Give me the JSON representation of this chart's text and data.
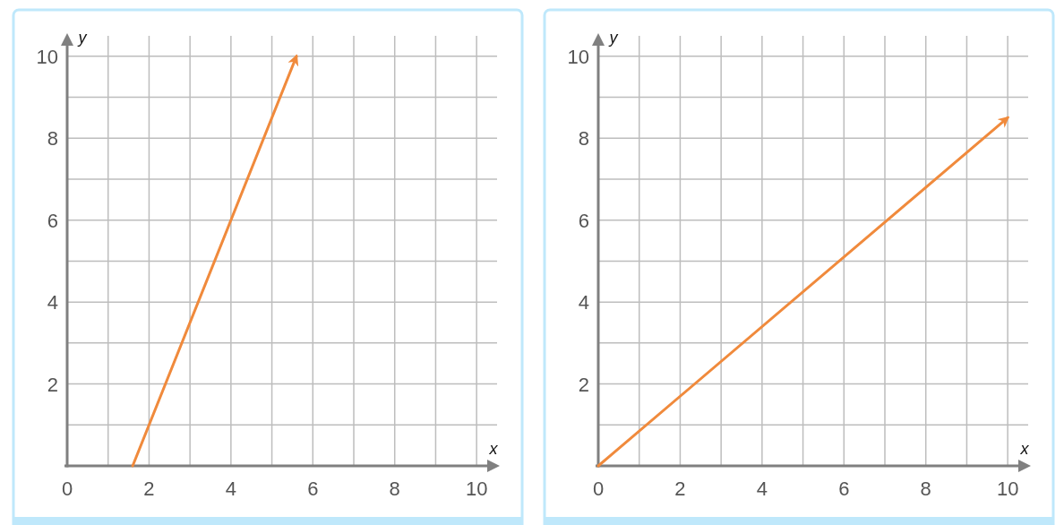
{
  "chart_data": [
    {
      "type": "line",
      "xlabel": "x",
      "ylabel": "y",
      "xlim": [
        0,
        10.5
      ],
      "ylim": [
        0,
        10.5
      ],
      "xticks": [
        {
          "value": 0,
          "label": "0"
        },
        {
          "value": 1,
          "label": null
        },
        2,
        {
          "value": 3,
          "label": null
        },
        4,
        {
          "value": 5,
          "label": null
        },
        6,
        {
          "value": 7,
          "label": null
        },
        8,
        {
          "value": 9,
          "label": null
        },
        10
      ],
      "yticks": [
        {
          "value": 0,
          "label": null
        },
        {
          "value": 1,
          "label": null
        },
        2,
        {
          "value": 3,
          "label": null
        },
        4,
        {
          "value": 5,
          "label": null
        },
        6,
        {
          "value": 7,
          "label": null
        },
        8,
        {
          "value": 9,
          "label": null
        },
        10
      ],
      "grid": true,
      "series": [
        {
          "color": "#f08a3c",
          "x": [
            1.6,
            5.6
          ],
          "values": [
            0,
            10
          ]
        }
      ]
    },
    {
      "type": "line",
      "xlabel": "x",
      "ylabel": "y",
      "xlim": [
        0,
        10.5
      ],
      "ylim": [
        0,
        10.5
      ],
      "xticks": [
        {
          "value": 0,
          "label": "0"
        },
        {
          "value": 1,
          "label": null
        },
        2,
        {
          "value": 3,
          "label": null
        },
        4,
        {
          "value": 5,
          "label": null
        },
        6,
        {
          "value": 7,
          "label": null
        },
        8,
        {
          "value": 9,
          "label": null
        },
        10
      ],
      "yticks": [
        {
          "value": 0,
          "label": null
        },
        {
          "value": 1,
          "label": null
        },
        2,
        {
          "value": 3,
          "label": null
        },
        4,
        {
          "value": 5,
          "label": null
        },
        6,
        {
          "value": 7,
          "label": null
        },
        8,
        {
          "value": 9,
          "label": null
        },
        10
      ],
      "grid": true,
      "series": [
        {
          "color": "#f08a3c",
          "x": [
            0,
            10
          ],
          "values": [
            0,
            8.5
          ]
        }
      ]
    }
  ]
}
